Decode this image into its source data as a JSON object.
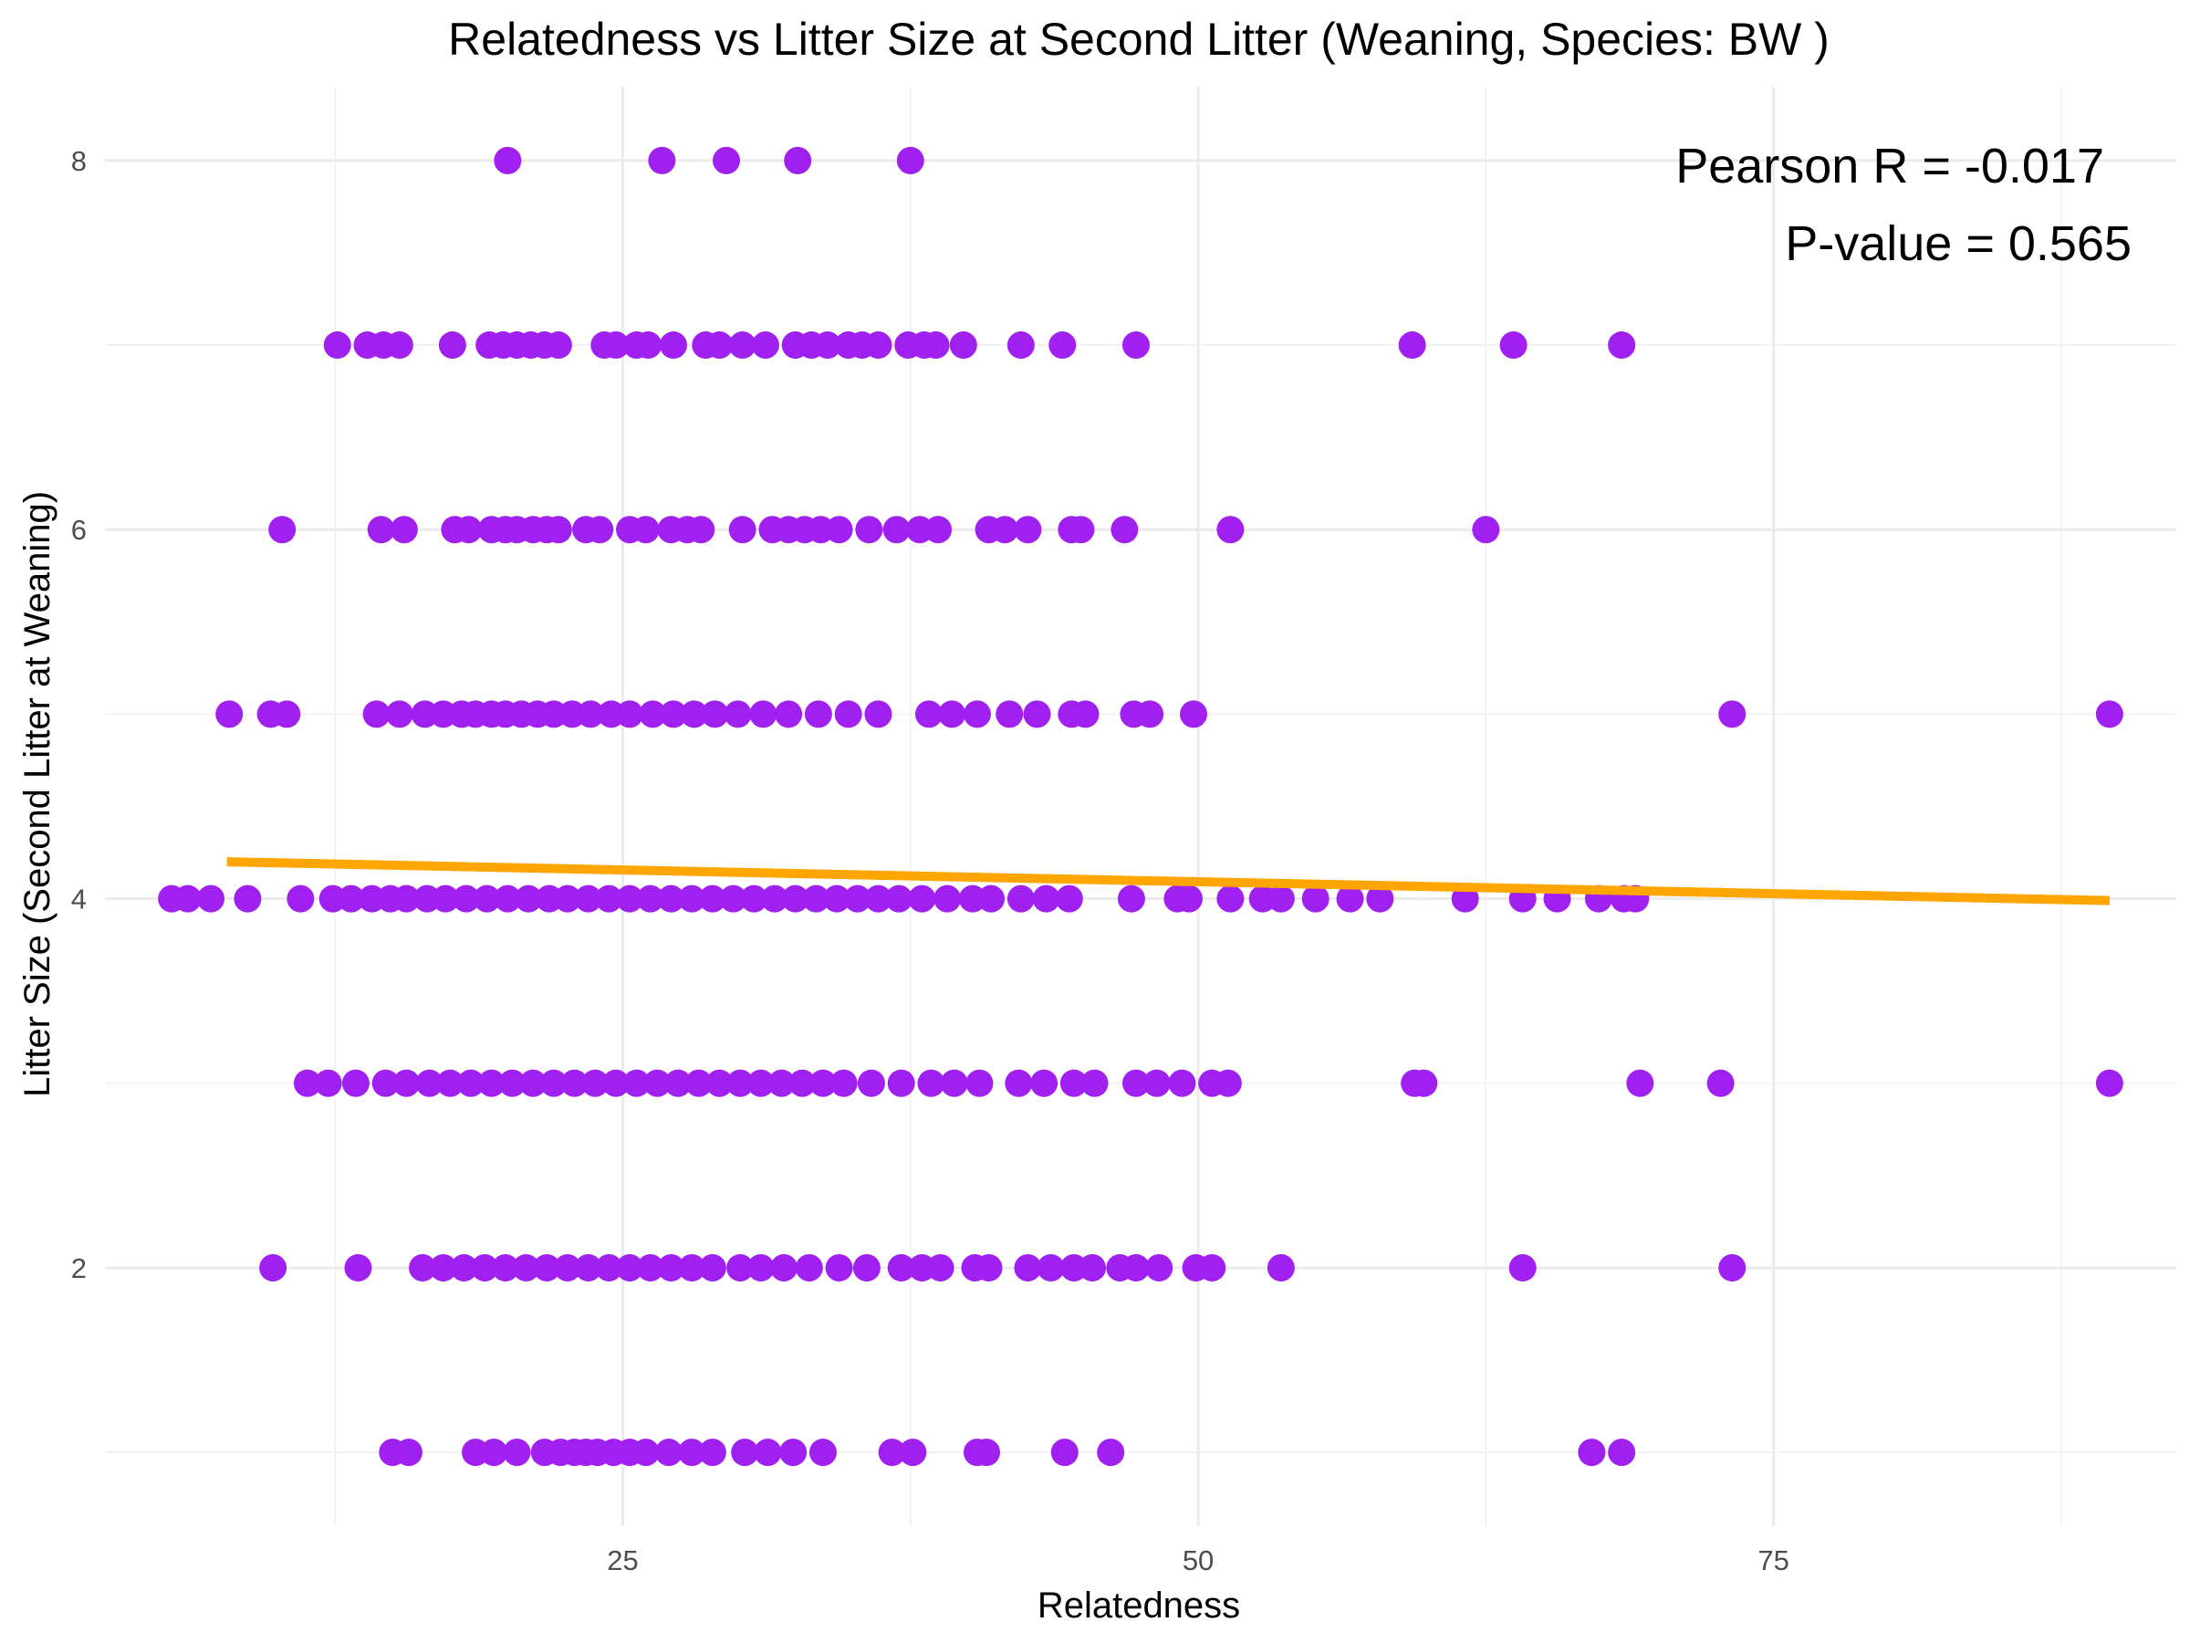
{
  "chart_data": {
    "type": "scatter",
    "title": "Relatedness vs Litter Size at Second Litter (Weaning, Species: BW )",
    "xlabel": "Relatedness",
    "ylabel": "Litter Size (Second Litter at Weaning)",
    "xlim": [
      2.5,
      92.5
    ],
    "ylim": [
      0.6,
      8.4
    ],
    "x_ticks": [
      25,
      50,
      75
    ],
    "y_ticks": [
      2,
      4,
      6,
      8
    ],
    "x_minor": [
      12.5,
      37.5,
      62.5,
      87.5
    ],
    "y_minor": [
      1,
      3,
      5,
      7
    ],
    "grid": true,
    "point_color": "#a020f0",
    "line_color": "#ffa500",
    "annotations": {
      "pearson": "Pearson R = -0.017",
      "pvalue": "P-value = 0.565"
    },
    "trend_line": {
      "x": [
        7.8,
        89.6
      ],
      "y": [
        4.2,
        3.99
      ]
    },
    "series": [
      {
        "y": 8,
        "x": [
          20.0,
          26.7,
          29.5,
          32.6,
          37.5
        ]
      },
      {
        "y": 7,
        "x": [
          12.6,
          13.9,
          14.6,
          15.3,
          17.6,
          19.2,
          19.8,
          20.4,
          21.0,
          21.6,
          22.2,
          24.2,
          24.7,
          25.6,
          26.1,
          27.2,
          28.6,
          29.2,
          30.2,
          31.2,
          32.5,
          33.2,
          33.9,
          34.8,
          35.4,
          36.1,
          37.4,
          38.1,
          38.6,
          39.8,
          42.3,
          44.1,
          47.3,
          59.3,
          63.7,
          68.4
        ]
      },
      {
        "y": 6,
        "x": [
          10.2,
          14.5,
          15.5,
          17.7,
          18.3,
          19.3,
          19.9,
          20.4,
          21.1,
          21.7,
          22.2,
          23.4,
          24.0,
          25.3,
          26.0,
          27.1,
          27.8,
          28.4,
          30.2,
          31.5,
          32.2,
          32.9,
          33.6,
          34.4,
          35.7,
          36.9,
          37.9,
          38.7,
          40.9,
          41.6,
          42.6,
          44.5,
          44.9,
          46.8,
          51.4,
          62.5
        ]
      },
      {
        "y": 5,
        "x": [
          7.9,
          9.7,
          10.4,
          14.3,
          15.3,
          16.4,
          17.2,
          18.0,
          18.6,
          19.3,
          19.9,
          20.6,
          21.3,
          22.0,
          22.8,
          23.6,
          24.5,
          25.3,
          26.3,
          27.2,
          28.1,
          29.0,
          30.0,
          31.1,
          32.2,
          33.5,
          34.8,
          36.1,
          38.3,
          39.3,
          40.4,
          41.8,
          43.0,
          44.5,
          45.1,
          47.2,
          47.9,
          49.8,
          73.2,
          89.6
        ]
      },
      {
        "y": 4,
        "x": [
          5.4,
          6.1,
          7.1,
          8.7,
          11.0,
          12.4,
          13.2,
          14.1,
          14.9,
          15.6,
          16.5,
          17.3,
          18.2,
          19.1,
          20.0,
          20.9,
          21.8,
          22.6,
          23.5,
          24.4,
          25.3,
          26.2,
          27.1,
          28.0,
          28.9,
          29.8,
          30.7,
          31.6,
          32.5,
          33.4,
          34.3,
          35.2,
          36.1,
          37.0,
          38.0,
          39.1,
          40.2,
          41.0,
          42.3,
          43.4,
          44.4,
          47.1,
          49.1,
          49.6,
          51.4,
          52.8,
          53.6,
          55.1,
          56.6,
          57.9,
          61.6,
          64.1,
          65.6,
          67.4,
          68.5,
          69.0
        ]
      },
      {
        "y": 3,
        "x": [
          11.3,
          12.2,
          13.4,
          14.7,
          15.6,
          16.6,
          17.5,
          18.4,
          19.3,
          20.2,
          21.1,
          22.0,
          22.9,
          23.8,
          24.7,
          25.6,
          26.5,
          27.4,
          28.3,
          29.2,
          30.1,
          31.0,
          31.9,
          32.8,
          33.7,
          34.6,
          35.8,
          37.1,
          38.4,
          39.4,
          40.5,
          42.2,
          43.3,
          44.6,
          45.5,
          47.3,
          48.2,
          49.3,
          50.6,
          51.3,
          59.4,
          59.8,
          69.2,
          72.7,
          89.6
        ]
      },
      {
        "y": 2,
        "x": [
          9.8,
          13.5,
          16.3,
          17.2,
          18.1,
          19.0,
          19.9,
          20.8,
          21.7,
          22.6,
          23.5,
          24.4,
          25.3,
          26.2,
          27.1,
          28.0,
          28.9,
          30.1,
          31.0,
          32.0,
          33.1,
          34.4,
          35.6,
          37.1,
          38.0,
          38.8,
          40.3,
          40.9,
          42.6,
          43.6,
          44.6,
          45.4,
          46.6,
          47.3,
          48.3,
          49.9,
          50.6,
          53.6,
          64.1,
          73.2
        ]
      },
      {
        "y": 1,
        "x": [
          15.0,
          15.7,
          18.6,
          19.4,
          20.4,
          21.6,
          22.3,
          22.9,
          23.4,
          23.9,
          24.6,
          25.3,
          26.0,
          27.0,
          28.0,
          28.9,
          30.3,
          31.3,
          32.4,
          33.7,
          36.7,
          37.6,
          40.4,
          40.8,
          44.2,
          46.2,
          67.1,
          68.4
        ]
      }
    ]
  }
}
